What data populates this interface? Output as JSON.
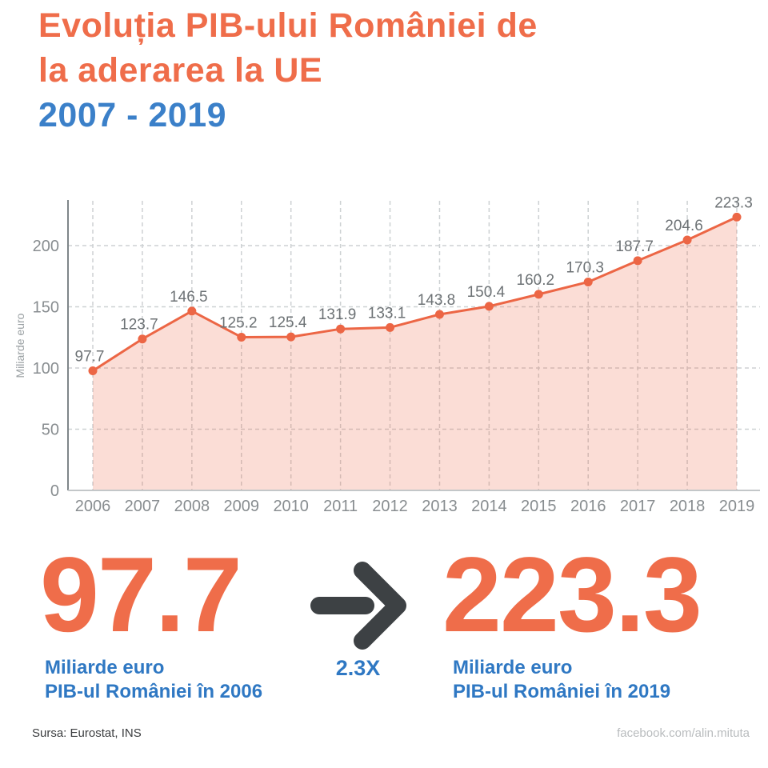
{
  "header": {
    "title_lines": [
      "Evoluția PIB-ului României de",
      "la aderarea la UE"
    ],
    "subtitle": "2007 - 2019"
  },
  "chart_data": {
    "type": "area",
    "x": [
      "2006",
      "2007",
      "2008",
      "2009",
      "2010",
      "2011",
      "2012",
      "2013",
      "2014",
      "2015",
      "2016",
      "2017",
      "2018",
      "2019"
    ],
    "values": [
      97.7,
      123.7,
      146.5,
      125.2,
      125.4,
      131.9,
      133.1,
      143.8,
      150.4,
      160.2,
      170.3,
      187.7,
      204.6,
      223.3
    ],
    "title": "",
    "xlabel": "",
    "ylabel": "Miliarde euro",
    "yticks": [
      0,
      50,
      100,
      150,
      200
    ],
    "ylim": [
      0,
      235
    ],
    "grid": true,
    "legend": "none",
    "point_labels": true
  },
  "summary": {
    "start_value": "97.7",
    "start_caption_line1": "Miliarde euro",
    "start_caption_line2": "PIB-ul României în 2006",
    "multiplier": "2.3X",
    "end_value": "223.3",
    "end_caption_line1": "Miliarde euro",
    "end_caption_line2": "PIB-ul României în 2019"
  },
  "footer": {
    "source": "Sursa: Eurostat, INS",
    "credit": "facebook.com/alin.mituta"
  },
  "colors": {
    "accent_orange": "#ef6d4a",
    "line_orange": "#ec6645",
    "area_fill_opacity": 0.22,
    "accent_blue": "#2f78c3",
    "subtitle_blue": "#3b80c9",
    "arrow_gray": "#3d4144",
    "value_label_gray": "#6d7275",
    "tick_gray": "#888d90",
    "grid_gray": "#cdd1d3",
    "y_axis_gray": "#7f8689",
    "x_axis_gray": "#c3c7c9",
    "ylabel_gray": "#9aa0a3"
  }
}
